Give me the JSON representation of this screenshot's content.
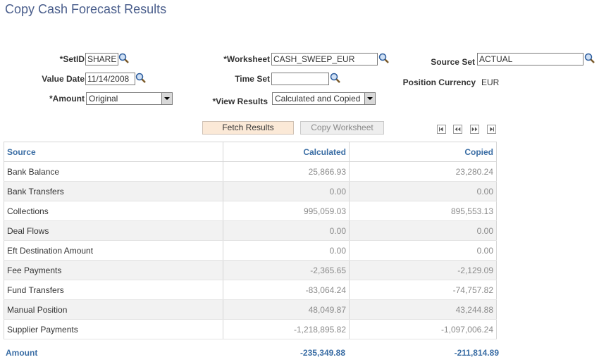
{
  "page": {
    "title": "Copy Cash Forecast Results"
  },
  "form": {
    "setid": {
      "label": "*SetID",
      "value": "SHARE"
    },
    "worksheet": {
      "label": "*Worksheet",
      "value": "CASH_SWEEP_EUR"
    },
    "source_set": {
      "label": "Source Set",
      "value": "ACTUAL"
    },
    "value_date": {
      "label": "Value Date",
      "value": "11/14/2008"
    },
    "time_set": {
      "label": "Time Set",
      "value": ""
    },
    "position_currency": {
      "label": "Position Currency",
      "value": "EUR"
    },
    "amount": {
      "label": "*Amount",
      "value": "Original"
    },
    "view_results": {
      "label": "*View Results",
      "value": "Calculated and Copied"
    }
  },
  "buttons": {
    "fetch": "Fetch Results",
    "copy": "Copy Worksheet"
  },
  "grid": {
    "columns": [
      "Source",
      "Calculated",
      "Copied"
    ],
    "rows": [
      {
        "source": "Bank Balance",
        "calculated": "25,866.93",
        "copied": "23,280.24"
      },
      {
        "source": "Bank Transfers",
        "calculated": "0.00",
        "copied": "0.00"
      },
      {
        "source": "Collections",
        "calculated": "995,059.03",
        "copied": "895,553.13"
      },
      {
        "source": "Deal Flows",
        "calculated": "0.00",
        "copied": "0.00"
      },
      {
        "source": "Eft Destination Amount",
        "calculated": "0.00",
        "copied": "0.00"
      },
      {
        "source": "Fee Payments",
        "calculated": "-2,365.65",
        "copied": "-2,129.09"
      },
      {
        "source": "Fund Transfers",
        "calculated": "-83,064.24",
        "copied": "-74,757.82"
      },
      {
        "source": "Manual Position",
        "calculated": "48,049.87",
        "copied": "43,244.88"
      },
      {
        "source": "Supplier Payments",
        "calculated": "-1,218,895.82",
        "copied": "-1,097,006.24"
      }
    ],
    "total": {
      "label": "Amount",
      "calculated": "-235,349.88",
      "copied": "-211,814.89"
    }
  }
}
